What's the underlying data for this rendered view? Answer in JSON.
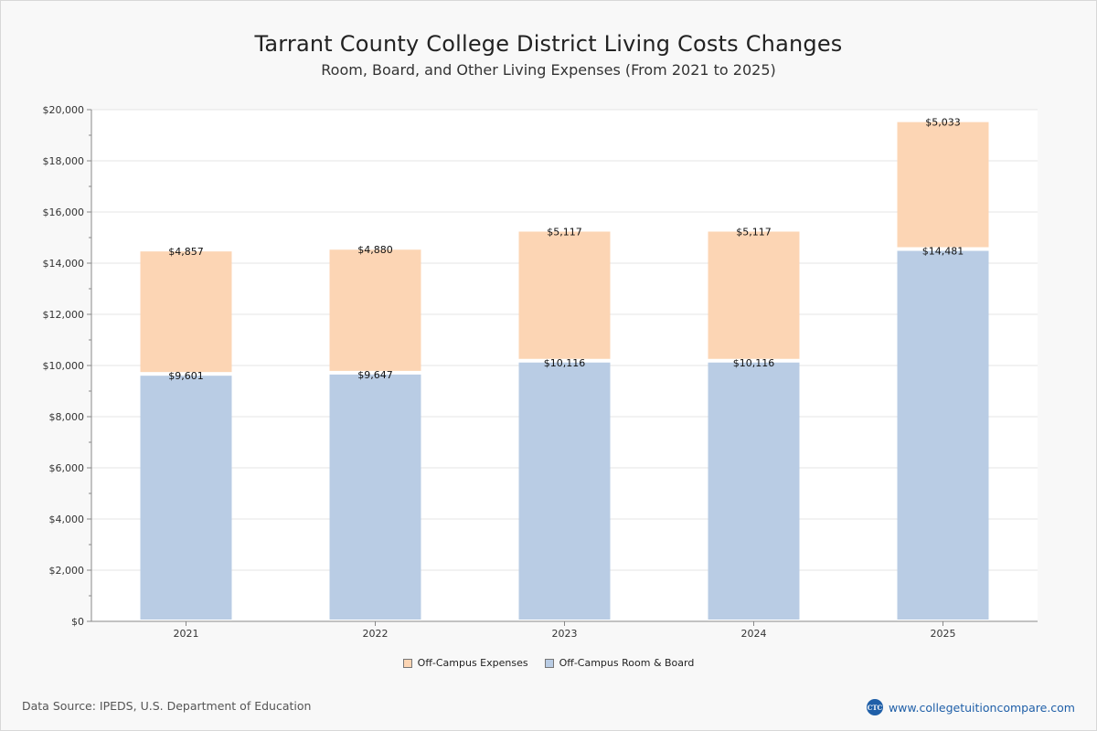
{
  "chart_data": {
    "type": "bar",
    "stacked": true,
    "title": "Tarrant County College District Living Costs Changes",
    "subtitle": "Room, Board, and Other Living Expenses (From 2021 to 2025)",
    "categories": [
      "2021",
      "2022",
      "2023",
      "2024",
      "2025"
    ],
    "series": [
      {
        "name": "Off-Campus Room & Board",
        "color": "#b9cce4",
        "values": [
          9601,
          9647,
          10116,
          10116,
          14481
        ],
        "labels": [
          "$9,601",
          "$9,647",
          "$10,116",
          "$10,116",
          "$14,481"
        ]
      },
      {
        "name": "Off-Campus Expenses",
        "color": "#fcd5b4",
        "values": [
          4857,
          4880,
          5117,
          5117,
          5033
        ],
        "labels": [
          "$4,857",
          "$4,880",
          "$5,117",
          "$5,117",
          "$5,033"
        ]
      }
    ],
    "ylim": [
      0,
      20000
    ],
    "yticks": [
      0,
      2000,
      4000,
      6000,
      8000,
      10000,
      12000,
      14000,
      16000,
      18000,
      20000
    ],
    "ytick_labels": [
      "$0",
      "$2,000",
      "$4,000",
      "$6,000",
      "$8,000",
      "$10,000",
      "$12,000",
      "$14,000",
      "$16,000",
      "$18,000",
      "$20,000"
    ],
    "grid": true,
    "legend_position": "bottom-center",
    "legend": [
      {
        "label": "Off-Campus Expenses",
        "color": "#fcd5b4"
      },
      {
        "label": "Off-Campus Room & Board",
        "color": "#b9cce4"
      }
    ]
  },
  "footer": {
    "source": "Data Source: IPEDS, U.S. Department of Education",
    "brand_logo": "CTC",
    "brand_url": "www.collegetuitioncompare.com"
  }
}
